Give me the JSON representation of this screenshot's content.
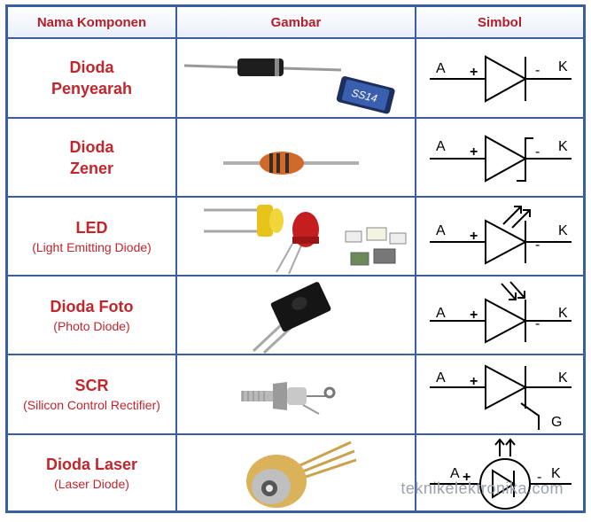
{
  "header": {
    "col1": "Nama Komponen",
    "col2": "Gambar",
    "col3": "Simbol"
  },
  "rows": [
    {
      "name_line1": "Dioda",
      "name_line2": "Penyearah",
      "subtitle": "",
      "chip_label": "SS14",
      "symbol": {
        "anode": "A",
        "cathode": "K",
        "plus": "+",
        "minus": "-"
      }
    },
    {
      "name_line1": "Dioda",
      "name_line2": "Zener",
      "subtitle": "",
      "symbol": {
        "anode": "A",
        "cathode": "K",
        "plus": "+",
        "minus": "-"
      }
    },
    {
      "name_line1": "LED",
      "name_line2": "",
      "subtitle": "(Light Emitting Diode)",
      "symbol": {
        "anode": "A",
        "cathode": "K",
        "plus": "+",
        "minus": "-"
      }
    },
    {
      "name_line1": "Dioda Foto",
      "name_line2": "",
      "subtitle": "(Photo Diode)",
      "symbol": {
        "anode": "A",
        "cathode": "K",
        "plus": "+",
        "minus": "-"
      }
    },
    {
      "name_line1": "SCR",
      "name_line2": "",
      "subtitle": "(Silicon Control Rectifier)",
      "symbol": {
        "anode": "A",
        "cathode": "K",
        "plus": "+",
        "gate": "G"
      }
    },
    {
      "name_line1": "Dioda Laser",
      "name_line2": "",
      "subtitle": "(Laser Diode)",
      "symbol": {
        "anode": "A",
        "cathode": "K",
        "plus": "+",
        "minus": "-"
      }
    }
  ],
  "watermark": "teknikelektronika.com",
  "colors": {
    "border": "#3b5ea0",
    "heading_red": "#c0262c"
  }
}
